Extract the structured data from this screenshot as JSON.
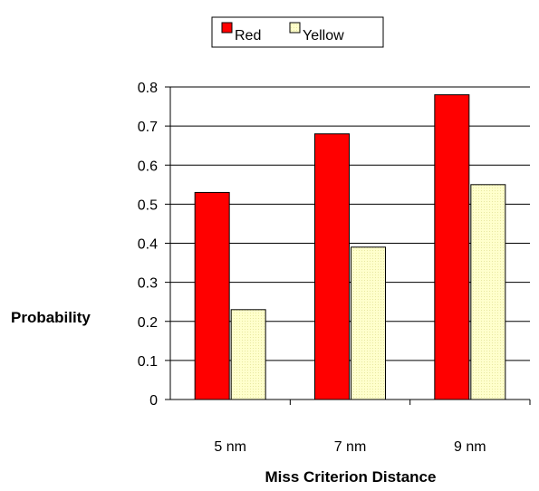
{
  "chart_data": {
    "type": "bar",
    "categories": [
      "5 nm",
      "7 nm",
      "9 nm"
    ],
    "series": [
      {
        "name": "Red",
        "values": [
          0.53,
          0.68,
          0.78
        ],
        "color": "#ff0000"
      },
      {
        "name": "Yellow",
        "values": [
          0.23,
          0.39,
          0.55
        ],
        "color": "#ffffcc"
      }
    ],
    "xlabel": "Miss Criterion Distance",
    "ylabel": "Probability",
    "ylim": [
      0,
      0.8
    ],
    "yticks": [
      "0",
      "0.1",
      "0.2",
      "0.3",
      "0.4",
      "0.5",
      "0.6",
      "0.7",
      "0.8"
    ],
    "grid": true,
    "legend_position": "top"
  }
}
